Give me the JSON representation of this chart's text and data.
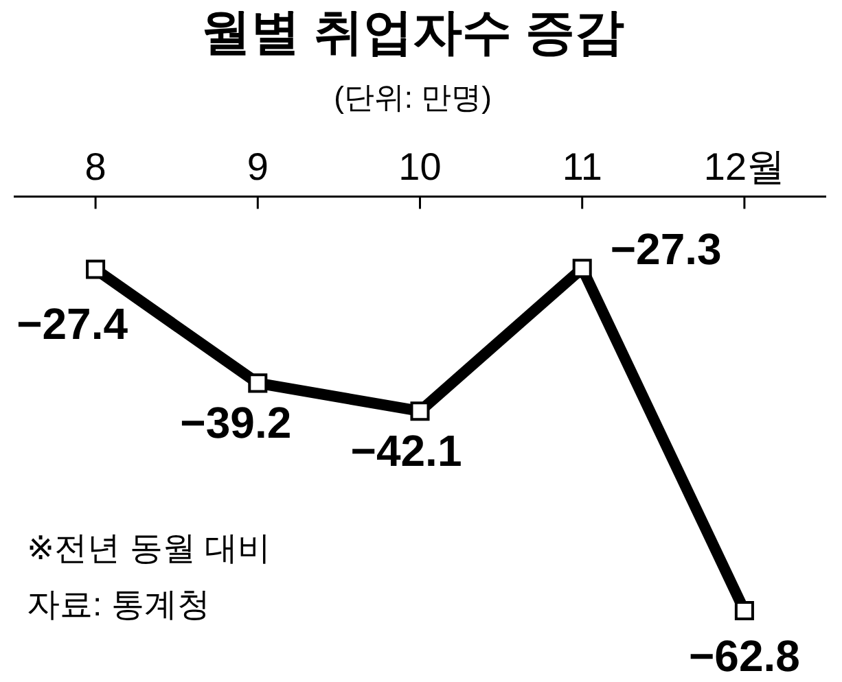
{
  "chart_data": {
    "type": "line",
    "title": "월별 취업자수 증감",
    "subtitle": "(단위: 만명)",
    "categories": [
      "8",
      "9",
      "10",
      "11",
      "12월"
    ],
    "series": [
      {
        "color": "#000000",
        "values": [
          -27.4,
          -39.2,
          -42.1,
          -27.3,
          -62.8
        ],
        "value_labels": [
          "−27.4",
          "−39.2",
          "−42.1",
          "−27.3",
          "−62.8"
        ]
      }
    ],
    "marker": "square",
    "line_style": "solid",
    "tick_labels": "x",
    "annotations": [
      "※전년 동월 대비",
      "자료: 통계청"
    ]
  }
}
